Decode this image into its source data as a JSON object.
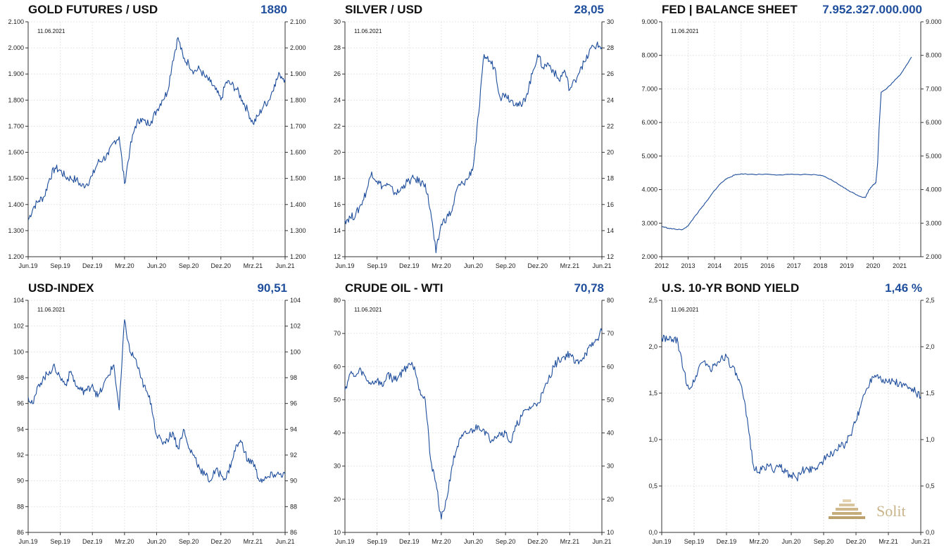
{
  "chart_data": [
    {
      "type": "line",
      "title": "GOLD FUTURES / USD",
      "value_label": "1880",
      "date_label": "11.06.2021",
      "x_ticks": [
        "Jun.19",
        "Sep.19",
        "Dez.19",
        "Mrz.20",
        "Jun.20",
        "Sep.20",
        "Dez.20",
        "Mrz.21",
        "Jun.21"
      ],
      "y_ticks": [
        "1.200",
        "1.300",
        "1.400",
        "1.500",
        "1.600",
        "1.700",
        "1.800",
        "1.900",
        "2.000",
        "2.100"
      ],
      "ylim": [
        1200,
        2100
      ],
      "xlim": [
        0,
        24
      ],
      "series": [
        {
          "x": [
            0,
            0.5,
            1,
            1.5,
            2,
            2.5,
            3,
            3.5,
            4,
            4.5,
            5,
            5.5,
            6,
            6.5,
            7,
            7.5,
            8,
            8.5,
            9,
            9.5,
            10,
            10.5,
            11,
            11.5,
            12,
            12.5,
            13,
            13.5,
            14,
            14.5,
            15,
            15.5,
            16,
            16.5,
            17,
            17.5,
            18,
            18.5,
            19,
            19.5,
            20,
            20.5,
            21,
            21.5,
            22,
            22.5,
            23,
            23.5,
            24
          ],
          "y": [
            1340,
            1390,
            1415,
            1430,
            1500,
            1540,
            1530,
            1505,
            1500,
            1495,
            1470,
            1480,
            1510,
            1560,
            1575,
            1590,
            1640,
            1660,
            1480,
            1610,
            1700,
            1730,
            1710,
            1720,
            1760,
            1800,
            1830,
            1950,
            2040,
            1960,
            1940,
            1910,
            1920,
            1890,
            1870,
            1840,
            1800,
            1870,
            1860,
            1840,
            1800,
            1760,
            1710,
            1740,
            1780,
            1800,
            1860,
            1900,
            1880
          ]
        }
      ]
    },
    {
      "type": "line",
      "title": "SILVER / USD",
      "value_label": "28,05",
      "date_label": "11.06.2021",
      "x_ticks": [
        "Jun.19",
        "Sep.19",
        "Dez.19",
        "Mrz.20",
        "Jun.20",
        "Sep.20",
        "Dez.20",
        "Mrz.21",
        "Jun.21"
      ],
      "y_ticks": [
        "12",
        "14",
        "16",
        "18",
        "20",
        "22",
        "24",
        "26",
        "28",
        "30"
      ],
      "ylim": [
        12,
        30
      ],
      "xlim": [
        0,
        24
      ],
      "series": [
        {
          "x": [
            0,
            0.5,
            1,
            1.5,
            2,
            2.5,
            3,
            3.5,
            4,
            4.5,
            5,
            5.5,
            6,
            6.5,
            7,
            7.5,
            8,
            8.5,
            9,
            9.5,
            10,
            10.5,
            11,
            11.5,
            12,
            12.5,
            13,
            13.5,
            14,
            14.5,
            15,
            15.5,
            16,
            16.5,
            17,
            17.5,
            18,
            18.5,
            19,
            19.5,
            20,
            20.5,
            21,
            21.5,
            22,
            22.5,
            23,
            23.5,
            24
          ],
          "y": [
            14.8,
            15.0,
            15.2,
            16.0,
            17.0,
            18.5,
            17.8,
            17.4,
            17.5,
            17.0,
            16.9,
            17.5,
            17.8,
            18.0,
            17.7,
            17.6,
            15.5,
            12.3,
            14.5,
            15.0,
            15.5,
            17.3,
            17.6,
            18.0,
            19.0,
            23.0,
            27.5,
            27.0,
            26.5,
            24.2,
            24.5,
            24.0,
            23.8,
            23.5,
            24.5,
            26.0,
            27.5,
            26.5,
            26.8,
            26.2,
            25.5,
            26.3,
            24.8,
            25.5,
            26.5,
            27.0,
            28.0,
            28.2,
            28.05
          ]
        }
      ]
    },
    {
      "type": "line",
      "title": "FED | BALANCE SHEET",
      "value_label": "7.952.327.000.000",
      "date_label": "11.06.2021",
      "x_ticks": [
        "2012",
        "2013",
        "2014",
        "2015",
        "2016",
        "2017",
        "2018",
        "2019",
        "2020",
        "2021"
      ],
      "y_ticks": [
        "2.000",
        "3.000",
        "4.000",
        "5.000",
        "6.000",
        "7.000",
        "8.000",
        "9.000"
      ],
      "ylim": [
        2000,
        9000
      ],
      "xlim": [
        2012,
        2021.8
      ],
      "series": [
        {
          "x": [
            2012,
            2012.25,
            2012.5,
            2012.75,
            2013,
            2013.25,
            2013.5,
            2013.75,
            2014,
            2014.25,
            2014.5,
            2014.75,
            2015,
            2015.5,
            2016,
            2016.5,
            2017,
            2017.5,
            2018,
            2018.25,
            2018.5,
            2018.75,
            2019,
            2019.25,
            2019.5,
            2019.7,
            2019.85,
            2020,
            2020.1,
            2020.17,
            2020.22,
            2020.3,
            2020.5,
            2020.75,
            2021,
            2021.25,
            2021.45
          ],
          "y": [
            2900,
            2850,
            2820,
            2800,
            2920,
            3200,
            3450,
            3700,
            3980,
            4200,
            4350,
            4430,
            4470,
            4450,
            4460,
            4440,
            4450,
            4450,
            4430,
            4350,
            4250,
            4130,
            4000,
            3900,
            3800,
            3760,
            4000,
            4150,
            4200,
            4800,
            5800,
            6900,
            7000,
            7200,
            7400,
            7700,
            7952
          ]
        }
      ]
    },
    {
      "type": "line",
      "title": "USD-INDEX",
      "value_label": "90,51",
      "date_label": "11.06.2021",
      "x_ticks": [
        "Jun.19",
        "Sep.19",
        "Dez.19",
        "Mrz.20",
        "Jun.20",
        "Sep.20",
        "Dez.20",
        "Mrz.21",
        "Jun.21"
      ],
      "y_ticks": [
        "86",
        "88",
        "90",
        "92",
        "94",
        "96",
        "98",
        "100",
        "102",
        "104"
      ],
      "ylim": [
        86,
        104
      ],
      "xlim": [
        0,
        24
      ],
      "series": [
        {
          "x": [
            0,
            0.5,
            1,
            1.5,
            2,
            2.5,
            3,
            3.5,
            4,
            4.5,
            5,
            5.5,
            6,
            6.5,
            7,
            7.5,
            8,
            8.5,
            9,
            9.5,
            10,
            10.5,
            11,
            11.5,
            12,
            12.5,
            13,
            13.5,
            14,
            14.5,
            15,
            15.5,
            16,
            16.5,
            17,
            17.5,
            18,
            18.5,
            19,
            19.5,
            20,
            20.5,
            21,
            21.5,
            22,
            22.5,
            23,
            23.5,
            24
          ],
          "y": [
            96.5,
            96.0,
            97.5,
            98.0,
            98.5,
            98.8,
            98.0,
            97.5,
            98.5,
            97.3,
            97.0,
            97.0,
            97.5,
            96.5,
            97.3,
            98.2,
            99.0,
            95.5,
            102.5,
            100.0,
            99.5,
            98.0,
            97.0,
            96.0,
            93.5,
            93.0,
            93.2,
            93.8,
            92.5,
            94.0,
            92.5,
            92.0,
            91.0,
            90.5,
            90.0,
            90.8,
            90.5,
            90.2,
            91.5,
            92.8,
            93.0,
            91.5,
            91.5,
            90.2,
            90.0,
            90.3,
            90.5,
            90.5,
            90.51
          ]
        }
      ]
    },
    {
      "type": "line",
      "title": "CRUDE OIL - WTI",
      "value_label": "70,78",
      "date_label": "11.06.2021",
      "x_ticks": [
        "Jun.19",
        "Sep.19",
        "Dez.19",
        "Mrz.20",
        "Jun.20",
        "Sep.20",
        "Dez.20",
        "Mrz.21",
        "Jun.21"
      ],
      "y_ticks": [
        "10",
        "20",
        "30",
        "40",
        "50",
        "60",
        "70",
        "80"
      ],
      "ylim": [
        10,
        80
      ],
      "xlim": [
        0,
        24
      ],
      "series": [
        {
          "x": [
            0,
            0.5,
            1,
            1.5,
            2,
            2.5,
            3,
            3.5,
            4,
            4.5,
            5,
            5.5,
            6,
            6.5,
            7,
            7.5,
            8,
            8.5,
            9,
            9.5,
            10,
            10.5,
            11,
            11.5,
            12,
            12.5,
            13,
            13.5,
            14,
            14.5,
            15,
            15.5,
            16,
            16.5,
            17,
            17.5,
            18,
            18.5,
            19,
            19.5,
            20,
            20.5,
            21,
            21.5,
            22,
            22.5,
            23,
            23.5,
            24
          ],
          "y": [
            53,
            58,
            57,
            59,
            56,
            55,
            56,
            54,
            58,
            56,
            57,
            59,
            61,
            60,
            53,
            50,
            32,
            25,
            14,
            20,
            30,
            36,
            39,
            40,
            41,
            42,
            41,
            38,
            39,
            40,
            40,
            37,
            42,
            45,
            47,
            48,
            49,
            52,
            56,
            60,
            62,
            63,
            64,
            61,
            62,
            64,
            66,
            68,
            70.78
          ]
        }
      ]
    },
    {
      "type": "line",
      "title": "U.S. 10-YR BOND YIELD",
      "value_label": "1,46 %",
      "date_label": "11.06.2021",
      "x_ticks": [
        "Jun.19",
        "Sep.19",
        "Dez.19",
        "Mrz.20",
        "Jun.20",
        "Sep.20",
        "Dez.20",
        "Mrz.21",
        "Jun.21"
      ],
      "y_ticks": [
        "0,0",
        "0,5",
        "1,0",
        "1,5",
        "2,0",
        "2,5"
      ],
      "ylim": [
        0,
        2.5
      ],
      "xlim": [
        0,
        24
      ],
      "series": [
        {
          "x": [
            0,
            0.5,
            1,
            1.5,
            2,
            2.5,
            3,
            3.5,
            4,
            4.5,
            5,
            5.5,
            6,
            6.5,
            7,
            7.5,
            8,
            8.5,
            9,
            9.5,
            10,
            10.5,
            11,
            11.5,
            12,
            12.5,
            13,
            13.5,
            14,
            14.5,
            15,
            15.5,
            16,
            16.5,
            17,
            17.5,
            18,
            18.5,
            19,
            19.5,
            20,
            20.5,
            21,
            21.5,
            22,
            22.5,
            23,
            23.5,
            24
          ],
          "y": [
            2.1,
            2.07,
            2.08,
            2.05,
            1.75,
            1.55,
            1.62,
            1.8,
            1.85,
            1.75,
            1.8,
            1.88,
            1.9,
            1.78,
            1.68,
            1.5,
            1.15,
            0.72,
            0.65,
            0.7,
            0.72,
            0.68,
            0.7,
            0.65,
            0.62,
            0.58,
            0.66,
            0.68,
            0.69,
            0.72,
            0.78,
            0.82,
            0.88,
            0.92,
            0.95,
            1.05,
            1.2,
            1.4,
            1.55,
            1.68,
            1.7,
            1.65,
            1.62,
            1.63,
            1.6,
            1.58,
            1.55,
            1.52,
            1.46
          ]
        }
      ]
    }
  ],
  "logo": {
    "text": "Solit"
  },
  "colors": {
    "series": "#1f4e9c",
    "value": "#1f4e9c",
    "logo": "#c9b48a"
  }
}
